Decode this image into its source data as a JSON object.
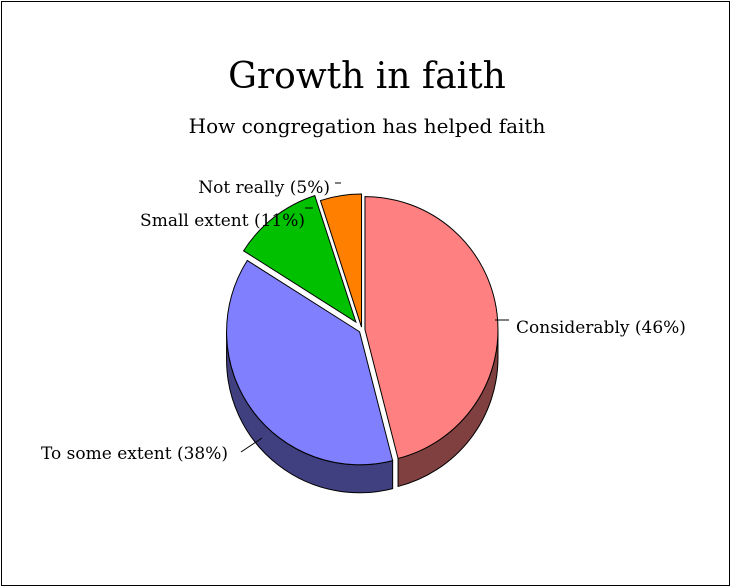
{
  "chart_data": {
    "type": "pie",
    "title": "Growth in faith",
    "subtitle": "How congregation has helped faith",
    "three_d": true,
    "slices": [
      {
        "label": "Considerably (46%)",
        "value": 46,
        "color": "#ff8080",
        "side_color": "#804040"
      },
      {
        "label": "To some extent (38%)",
        "value": 38,
        "color": "#8080ff",
        "side_color": "#404080"
      },
      {
        "label": "Small extent (11%)",
        "value": 11,
        "color": "#00c000",
        "side_color": "#006000"
      },
      {
        "label": "Not really (5%)",
        "value": 5,
        "color": "#ff8000",
        "side_color": "#804000"
      }
    ]
  }
}
